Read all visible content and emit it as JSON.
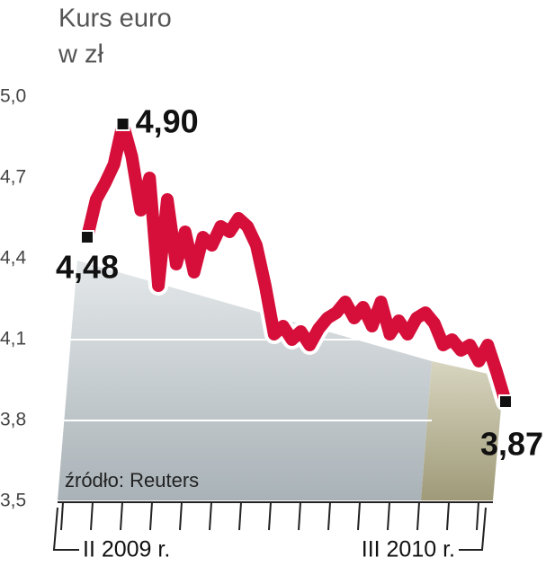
{
  "chart_data": {
    "type": "line",
    "title": "Kurs euro",
    "subtitle": "w zł",
    "source": "źródło: Reuters",
    "categories": [
      "II 2009 r.",
      null,
      null,
      null,
      null,
      null,
      null,
      null,
      null,
      null,
      null,
      null,
      null,
      null,
      null,
      null,
      null,
      null,
      null,
      null,
      null,
      null,
      null,
      null,
      null,
      null,
      null,
      null,
      null,
      null,
      null,
      null,
      null,
      null,
      null,
      null,
      null,
      null,
      null,
      null,
      null,
      null,
      null,
      null,
      null,
      null,
      null,
      "III 2010 r."
    ],
    "values": [
      4.48,
      4.62,
      4.68,
      4.75,
      4.9,
      4.78,
      4.58,
      4.7,
      4.3,
      4.62,
      4.38,
      4.5,
      4.35,
      4.48,
      4.45,
      4.52,
      4.5,
      4.55,
      4.52,
      4.45,
      4.3,
      4.12,
      4.15,
      4.1,
      4.13,
      4.08,
      4.14,
      4.18,
      4.2,
      4.24,
      4.18,
      4.22,
      4.15,
      4.24,
      4.12,
      4.17,
      4.12,
      4.18,
      4.2,
      4.16,
      4.08,
      4.1,
      4.06,
      4.08,
      4.02,
      4.08,
      3.98,
      3.87
    ],
    "value_labels": [
      "4,48",
      null,
      null,
      null,
      "4,90",
      null,
      null,
      null,
      null,
      null,
      null,
      null,
      null,
      null,
      null,
      null,
      null,
      null,
      null,
      null,
      null,
      null,
      null,
      null,
      null,
      null,
      null,
      null,
      null,
      null,
      null,
      null,
      null,
      null,
      null,
      null,
      null,
      null,
      null,
      null,
      null,
      null,
      null,
      null,
      null,
      null,
      null,
      "3,87"
    ],
    "color": "#d50f3a",
    "ylim": [
      3.5,
      5.0
    ],
    "yticks": [
      {
        "value": 3.5,
        "label": "3,5"
      },
      {
        "value": 3.8,
        "label": "3,8"
      },
      {
        "value": 4.1,
        "label": "4,1"
      },
      {
        "value": 4.4,
        "label": "4,4"
      },
      {
        "value": 4.7,
        "label": "4,7"
      },
      {
        "value": 5.0,
        "label": "5,0"
      }
    ],
    "grid": true
  }
}
